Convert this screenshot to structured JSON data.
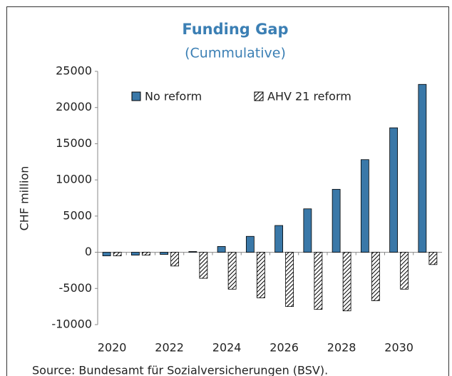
{
  "chart_data": {
    "type": "bar",
    "title": "Funding Gap",
    "subtitle": "(Cummulative)",
    "y_label": "CHF million",
    "source": "Source: Bundesamt für Sozialversicherungen (BSV).",
    "categories": [
      "2020",
      null,
      "2022",
      null,
      "2024",
      null,
      "2026",
      null,
      "2028",
      null,
      "2030",
      null
    ],
    "series": [
      {
        "name": "No reform",
        "color": "#3a78a8",
        "hatch": false,
        "values": [
          -500,
          -400,
          -300,
          100,
          800,
          2200,
          3700,
          6000,
          8700,
          12800,
          17200,
          23200
        ]
      },
      {
        "name": "AHV 21 reform",
        "color": "#ffffff",
        "hatch": true,
        "values": [
          -500,
          -400,
          -1900,
          -3600,
          -5100,
          -6300,
          -7500,
          -7900,
          -8100,
          -6700,
          -5100,
          -1700
        ]
      }
    ],
    "ylim": [
      -10000,
      25000
    ],
    "yticks": [
      -10000,
      -5000,
      0,
      5000,
      10000,
      15000,
      20000,
      25000
    ],
    "grid": false
  }
}
